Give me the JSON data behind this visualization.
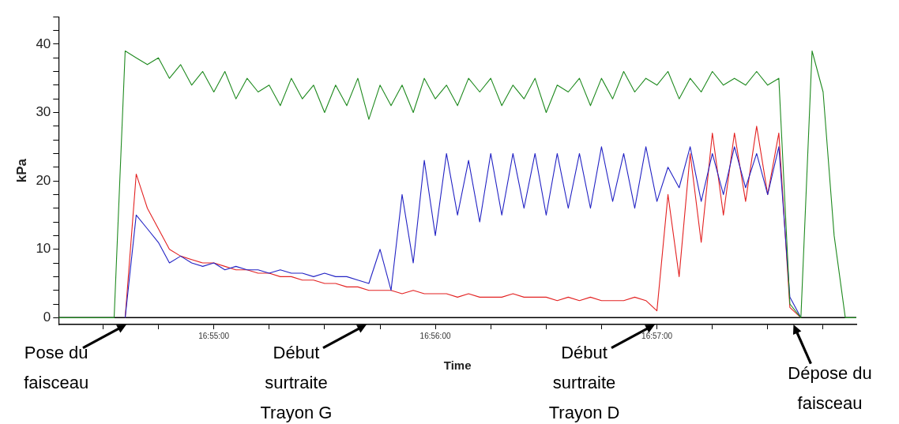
{
  "chart_data": {
    "type": "line",
    "xlabel": "Time",
    "ylabel": "kPa",
    "x": [
      16.905,
      16.90583,
      16.90667,
      16.9075,
      16.90833,
      16.90917,
      16.91,
      16.91083,
      16.91167,
      16.9125,
      16.91333,
      16.91417,
      16.915,
      16.91583,
      16.91667,
      16.9175,
      16.91833,
      16.91917,
      16.92,
      16.92083,
      16.92167,
      16.9225,
      16.92333,
      16.92417,
      16.925,
      16.92583,
      16.92667,
      16.9275,
      16.92833,
      16.92917,
      16.93,
      16.93083,
      16.93167,
      16.9325,
      16.93333,
      16.93417,
      16.935,
      16.93583,
      16.93667,
      16.9375,
      16.93833,
      16.93917,
      16.94,
      16.94083,
      16.94167,
      16.9425,
      16.94333,
      16.94417,
      16.945,
      16.94583,
      16.94667,
      16.9475,
      16.94833,
      16.94917,
      16.95,
      16.95083,
      16.95167,
      16.9525,
      16.95333,
      16.95417,
      16.955,
      16.95583,
      16.95667,
      16.9575,
      16.95833,
      16.95917,
      16.96,
      16.96083,
      16.96167,
      16.9625,
      16.96333,
      16.96417,
      16.965
    ],
    "series": [
      {
        "color": "#1f8a1f",
        "values": [
          0,
          0,
          0,
          0,
          0,
          0,
          39,
          38,
          37,
          38,
          35,
          37,
          34,
          36,
          33,
          36,
          32,
          35,
          33,
          34,
          31,
          35,
          32,
          34,
          30,
          34,
          31,
          35,
          29,
          34,
          31,
          34,
          30,
          35,
          32,
          34,
          31,
          35,
          33,
          35,
          31,
          34,
          32,
          35,
          30,
          34,
          33,
          35,
          31,
          35,
          32,
          36,
          33,
          35,
          34,
          36,
          32,
          35,
          33,
          36,
          34,
          35,
          34,
          36,
          34,
          35,
          2,
          0,
          39,
          33,
          12,
          0,
          0
        ]
      },
      {
        "color": "#2323c4",
        "values": [
          null,
          null,
          null,
          null,
          null,
          null,
          0,
          15,
          13,
          11,
          8,
          9,
          8,
          7.5,
          8,
          7,
          7.5,
          7,
          7,
          6.5,
          7,
          6.5,
          6.5,
          6,
          6.5,
          6,
          6,
          5.5,
          5,
          10,
          4,
          18,
          8,
          23,
          12,
          24,
          15,
          23,
          14,
          24,
          15,
          24,
          16,
          24,
          15,
          24,
          16,
          24,
          16,
          25,
          17,
          24,
          16,
          25,
          17,
          22,
          19,
          25,
          17,
          24,
          18,
          25,
          19,
          24,
          18,
          25,
          3,
          0,
          null,
          null,
          null,
          null,
          null
        ]
      },
      {
        "color": "#e32222",
        "values": [
          null,
          null,
          null,
          null,
          null,
          null,
          0,
          21,
          16,
          13,
          10,
          9,
          8.5,
          8,
          8,
          7.5,
          7,
          7,
          6.5,
          6.5,
          6,
          6,
          5.5,
          5.5,
          5,
          5,
          4.5,
          4.5,
          4,
          4,
          4,
          3.5,
          4,
          3.5,
          3.5,
          3.5,
          3,
          3.5,
          3,
          3,
          3,
          3.5,
          3,
          3,
          3,
          2.5,
          3,
          2.5,
          3,
          2.5,
          2.5,
          2.5,
          3,
          2.5,
          1,
          18,
          6,
          24,
          11,
          27,
          15,
          27,
          17,
          28,
          18,
          27,
          1.5,
          0,
          null,
          null,
          null,
          null,
          null
        ]
      }
    ],
    "xlim": [
      16.905,
      16.965
    ],
    "xticks": [
      {
        "value": 16.90833,
        "label": null
      },
      {
        "value": 16.9125,
        "label": null
      },
      {
        "value": 16.91667,
        "label": "16:55:00"
      },
      {
        "value": 16.92083,
        "label": null
      },
      {
        "value": 16.925,
        "label": null
      },
      {
        "value": 16.92917,
        "label": null
      },
      {
        "value": 16.93333,
        "label": "16:56:00"
      },
      {
        "value": 16.9375,
        "label": null
      },
      {
        "value": 16.94167,
        "label": null
      },
      {
        "value": 16.94583,
        "label": null
      },
      {
        "value": 16.95,
        "label": "16:57:00"
      },
      {
        "value": 16.95417,
        "label": null
      },
      {
        "value": 16.95833,
        "label": null
      },
      {
        "value": 16.9625,
        "label": null
      }
    ],
    "ylim": [
      -1,
      44
    ],
    "yticks": [
      0,
      {
        "value": 2,
        "label": null
      },
      {
        "value": 4,
        "label": null
      },
      {
        "value": 6,
        "label": null
      },
      {
        "value": 8,
        "label": null
      },
      10,
      {
        "value": 12,
        "label": null
      },
      {
        "value": 14,
        "label": null
      },
      {
        "value": 16,
        "label": null
      },
      {
        "value": 18,
        "label": null
      },
      20,
      {
        "value": 22,
        "label": null
      },
      {
        "value": 24,
        "label": null
      },
      {
        "value": 26,
        "label": null
      },
      {
        "value": 28,
        "label": null
      },
      30,
      {
        "value": 32,
        "label": null
      },
      {
        "value": 34,
        "label": null
      },
      {
        "value": 36,
        "label": null
      },
      {
        "value": 38,
        "label": null
      },
      40,
      {
        "value": 42,
        "label": null
      },
      {
        "value": 44,
        "label": null
      }
    ],
    "ref_lines": [
      {
        "axis": "y",
        "value": 0,
        "color": "#000000"
      }
    ],
    "annotations": [
      {
        "text": "Pose du faisceau",
        "x": 16.91028,
        "y": 0
      },
      {
        "text": "Début surtraite Trayon G",
        "x": 16.92833,
        "y": 0
      },
      {
        "text": "Début surtraite Trayon D",
        "x": 16.95,
        "y": 0
      },
      {
        "text": "Dépose du faisceau",
        "x": 16.96028,
        "y": 0
      }
    ],
    "grid": false,
    "marker": "none",
    "line_style": "solid",
    "legend": false
  }
}
